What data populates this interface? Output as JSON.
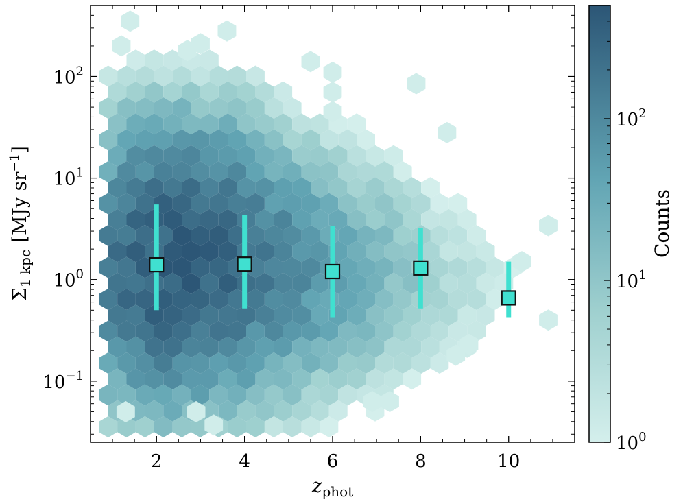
{
  "chart_data": {
    "type": "heatmap",
    "subtype": "hexbin",
    "xlabel": "z_phot",
    "xlabel_main": "z",
    "xlabel_sub": "phot",
    "ylabel": "Σ_1 kpc [MJy sr^-1]",
    "ylabel_main": "Σ",
    "ylabel_sub": "1 kpc",
    "ylabel_unit_open": "[MJy sr",
    "ylabel_unit_exp": "−1",
    "ylabel_unit_close": "]",
    "xlim": [
      0.5,
      11.5
    ],
    "ylim": [
      0.025,
      500
    ],
    "yscale": "log",
    "xticks": [
      2,
      4,
      6,
      8,
      10
    ],
    "xtick_labels": [
      "2",
      "4",
      "6",
      "8",
      "10"
    ],
    "yticks": [
      0.1,
      1,
      10,
      100
    ],
    "ytick_labels": [
      {
        "base": "10",
        "exp": "−1"
      },
      {
        "base": "10",
        "exp": "0"
      },
      {
        "base": "10",
        "exp": "1"
      },
      {
        "base": "10",
        "exp": "2"
      }
    ],
    "medians": {
      "marker": "square",
      "color": "#40e0d0",
      "points": [
        {
          "x": 2,
          "y": 1.4,
          "y_low": 0.5,
          "y_high": 5.5
        },
        {
          "x": 4,
          "y": 1.42,
          "y_low": 0.52,
          "y_high": 4.3
        },
        {
          "x": 6,
          "y": 1.2,
          "y_low": 0.42,
          "y_high": 3.4
        },
        {
          "x": 8,
          "y": 1.3,
          "y_low": 0.52,
          "y_high": 3.2
        },
        {
          "x": 10,
          "y": 0.66,
          "y_low": 0.42,
          "y_high": 1.5
        }
      ]
    },
    "colorbar": {
      "label": "Counts",
      "scale": "log",
      "range": [
        1,
        500
      ],
      "ticks": [
        1,
        10,
        100
      ],
      "tick_labels": [
        {
          "base": "10",
          "exp": "0"
        },
        {
          "base": "10",
          "exp": "1"
        },
        {
          "base": "10",
          "exp": "2"
        }
      ],
      "color_low": "#d4efec",
      "color_high": "#2c5676"
    },
    "density_model": {
      "comment_free": true,
      "x_range": [
        0.9,
        11.1
      ],
      "components": [
        {
          "x": 2.0,
          "y": 1.4,
          "sx": 0.85,
          "sy": 0.6,
          "amp": 320
        },
        {
          "x": 3.3,
          "y": 1.5,
          "sx": 0.9,
          "sy": 0.6,
          "amp": 220
        },
        {
          "x": 4.9,
          "y": 1.2,
          "sx": 1.0,
          "sy": 0.55,
          "amp": 70
        },
        {
          "x": 6.8,
          "y": 1.1,
          "sx": 0.9,
          "sy": 0.5,
          "amp": 14
        },
        {
          "x": 8.8,
          "y": 0.9,
          "sx": 0.9,
          "sy": 0.4,
          "amp": 2.2
        }
      ],
      "outliers": [
        {
          "x": 1.4,
          "y": 350
        },
        {
          "x": 1.2,
          "y": 200
        },
        {
          "x": 2.7,
          "y": 180
        },
        {
          "x": 3.0,
          "y": 210
        },
        {
          "x": 3.6,
          "y": 280
        },
        {
          "x": 5.5,
          "y": 140
        },
        {
          "x": 6.0,
          "y": 110
        },
        {
          "x": 6.0,
          "y": 70
        },
        {
          "x": 6.0,
          "y": 45
        },
        {
          "x": 7.9,
          "y": 85
        },
        {
          "x": 8.6,
          "y": 28
        },
        {
          "x": 10.9,
          "y": 3.4
        },
        {
          "x": 10.3,
          "y": 1.5
        },
        {
          "x": 10.9,
          "y": 0.4
        },
        {
          "x": 1.3,
          "y": 0.05
        },
        {
          "x": 2.9,
          "y": 0.05
        },
        {
          "x": 3.3,
          "y": 0.037
        },
        {
          "x": 6.9,
          "y": 0.063
        },
        {
          "x": 7.3,
          "y": 0.063
        },
        {
          "x": 9.1,
          "y": 0.23
        },
        {
          "x": 8.8,
          "y": 0.18
        }
      ]
    }
  }
}
